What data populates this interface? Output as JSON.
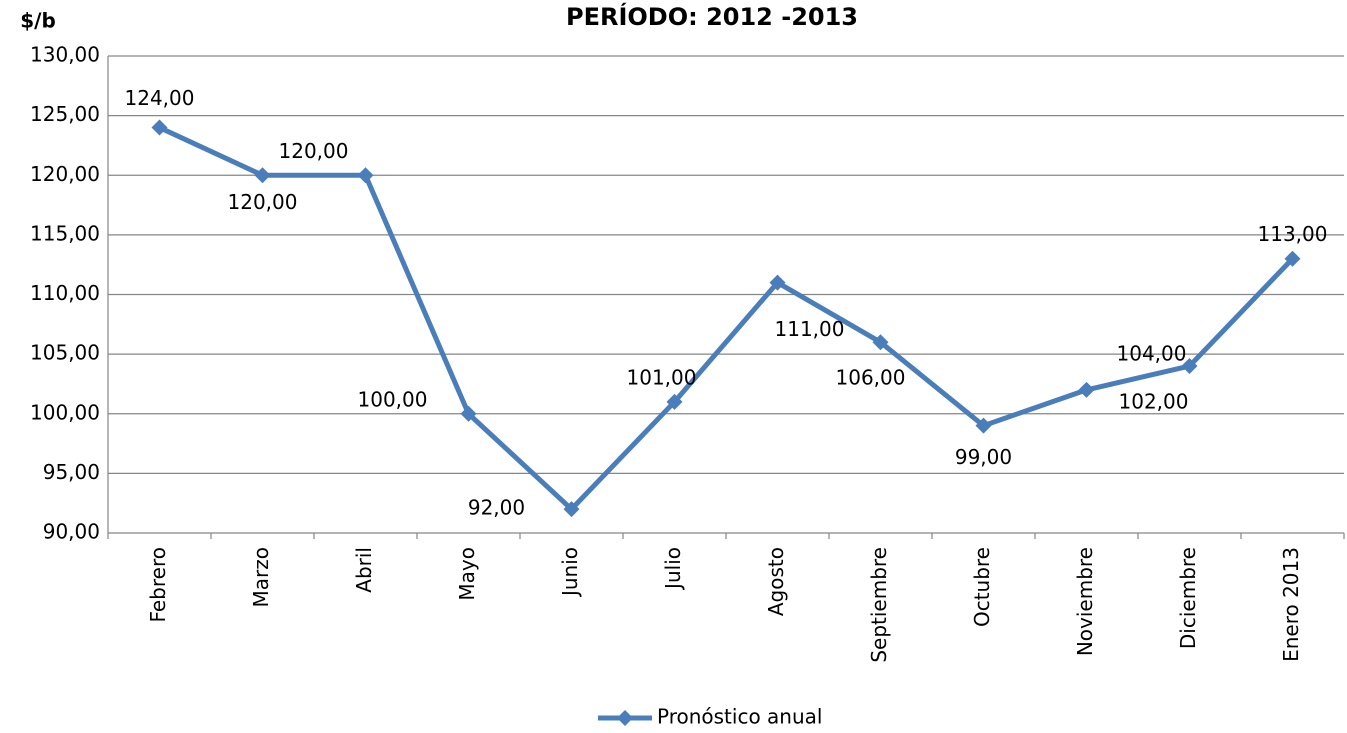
{
  "chart_data": {
    "type": "line",
    "title": "PERÍODO: 2012 -2013",
    "y_label": "$/b",
    "categories": [
      "Febrero",
      "Marzo",
      "Abril",
      "Mayo",
      "Junio",
      "Julio",
      "Agosto",
      "Septiembre",
      "Octubre",
      "Noviembre",
      "Diciembre",
      "Enero 2013"
    ],
    "series": [
      {
        "name": "Pronóstico anual",
        "color": "#4a7ebb",
        "values": [
          124,
          120,
          120,
          100,
          92,
          101,
          111,
          106,
          99,
          102,
          104,
          113
        ],
        "value_labels": [
          "124,00",
          "120,00",
          "120,00",
          "100,00",
          "92,00",
          "101,00",
          "111,00",
          "106,00",
          "99,00",
          "102,00",
          "104,00",
          "113,00"
        ]
      }
    ],
    "ylim": [
      90,
      130
    ],
    "yticks": [
      {
        "value": 90,
        "label": "90,00"
      },
      {
        "value": 95,
        "label": "95,00"
      },
      {
        "value": 100,
        "label": "100,00"
      },
      {
        "value": 105,
        "label": "105,00"
      },
      {
        "value": 110,
        "label": "110,00"
      },
      {
        "value": 115,
        "label": "115,00"
      },
      {
        "value": 120,
        "label": "120,00"
      },
      {
        "value": 125,
        "label": "125,00"
      },
      {
        "value": 130,
        "label": "130,00"
      }
    ],
    "grid": true,
    "legend": "bottom"
  }
}
